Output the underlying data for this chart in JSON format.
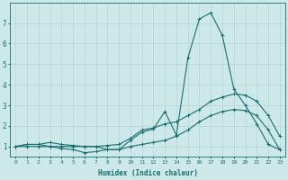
{
  "xlabel": "Humidex (Indice chaleur)",
  "background_color": "#cce8e8",
  "grid_color": "#b8d4d4",
  "line_color": "#1a6e6e",
  "x_values": [
    0,
    1,
    2,
    3,
    4,
    5,
    6,
    7,
    8,
    9,
    10,
    11,
    12,
    13,
    14,
    15,
    16,
    17,
    18,
    19,
    20,
    21,
    22,
    23
  ],
  "series1": [
    1.0,
    1.1,
    1.1,
    1.0,
    0.9,
    0.85,
    0.7,
    0.75,
    0.85,
    0.85,
    1.3,
    1.7,
    1.85,
    2.7,
    1.55,
    5.3,
    7.2,
    7.5,
    6.4,
    3.8,
    3.0,
    2.1,
    1.1,
    0.85
  ],
  "series2": [
    1.0,
    1.1,
    1.1,
    1.2,
    1.1,
    1.05,
    1.0,
    1.0,
    1.05,
    1.1,
    1.4,
    1.8,
    1.9,
    2.1,
    2.2,
    2.5,
    2.8,
    3.2,
    3.4,
    3.55,
    3.5,
    3.2,
    2.5,
    1.5
  ],
  "series3": [
    1.0,
    1.0,
    1.0,
    1.0,
    1.0,
    1.0,
    1.0,
    1.0,
    0.85,
    0.85,
    1.0,
    1.1,
    1.2,
    1.3,
    1.5,
    1.8,
    2.2,
    2.5,
    2.7,
    2.8,
    2.75,
    2.5,
    1.8,
    0.85
  ],
  "ylim": [
    0.5,
    8.0
  ],
  "xlim": [
    -0.5,
    23.5
  ],
  "yticks": [
    1,
    2,
    3,
    4,
    5,
    6,
    7
  ],
  "xticks": [
    0,
    1,
    2,
    3,
    4,
    5,
    6,
    7,
    8,
    9,
    10,
    11,
    12,
    13,
    14,
    15,
    16,
    17,
    18,
    19,
    20,
    21,
    22,
    23
  ],
  "xlabel_fontsize": 5.5,
  "ytick_fontsize": 5.5,
  "xtick_fontsize": 4.5,
  "marker_size": 2.5,
  "linewidth": 0.8
}
